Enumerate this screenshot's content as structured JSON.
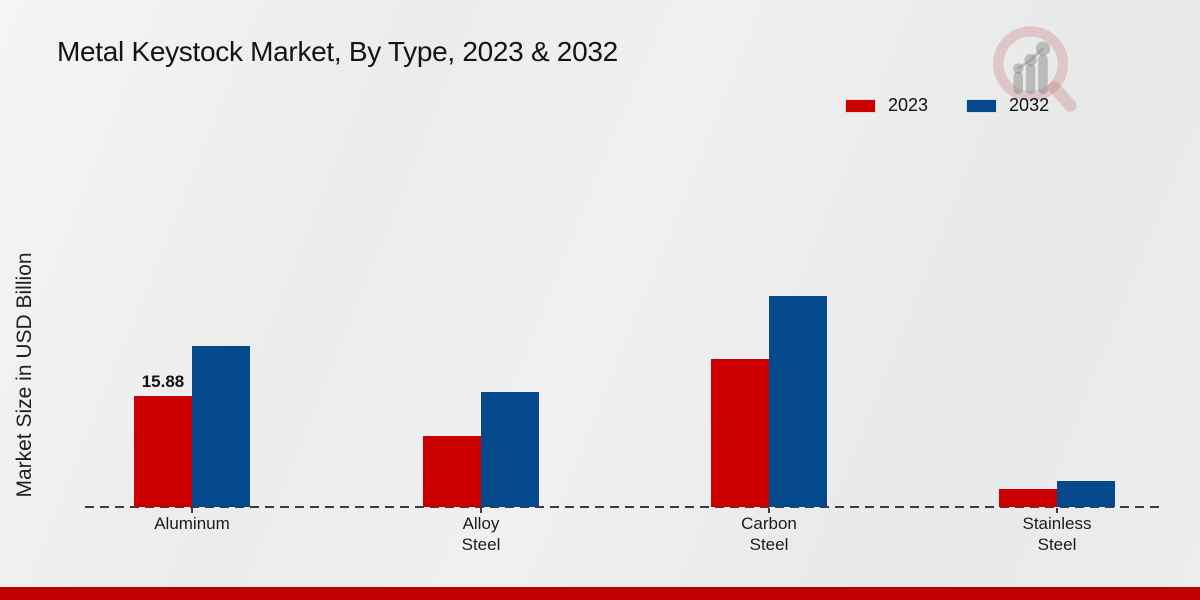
{
  "title": "Metal Keystock Market, By Type, 2023 & 2032",
  "ylabel": "Market Size in USD Billion",
  "legend": {
    "items": [
      {
        "label": "2023",
        "color": "#cc0000"
      },
      {
        "label": "2032",
        "color": "#04498c"
      }
    ]
  },
  "watermark_icon": "magnifier-bar-chart-logo",
  "footer": {
    "bar_color": "#c00000"
  },
  "chart_data": {
    "type": "bar",
    "title": "Metal Keystock Market, By Type, 2023 & 2032",
    "xlabel": "",
    "ylabel": "Market Size in USD Billion",
    "categories": [
      "Aluminum",
      "Alloy Steel",
      "Carbon Steel",
      "Stainless Steel"
    ],
    "series": [
      {
        "name": "2023",
        "color": "#cc0000",
        "values": [
          15.88,
          10.2,
          21.2,
          2.6
        ]
      },
      {
        "name": "2032",
        "color": "#04498c",
        "values": [
          23.0,
          16.5,
          30.2,
          3.7
        ]
      }
    ],
    "annotations": [
      {
        "category": "Aluminum",
        "series": "2023",
        "text": "15.88"
      }
    ],
    "legend_position": "top-right",
    "grid": false,
    "baseline_style": "dashed",
    "ylim": [
      0,
      32
    ]
  }
}
